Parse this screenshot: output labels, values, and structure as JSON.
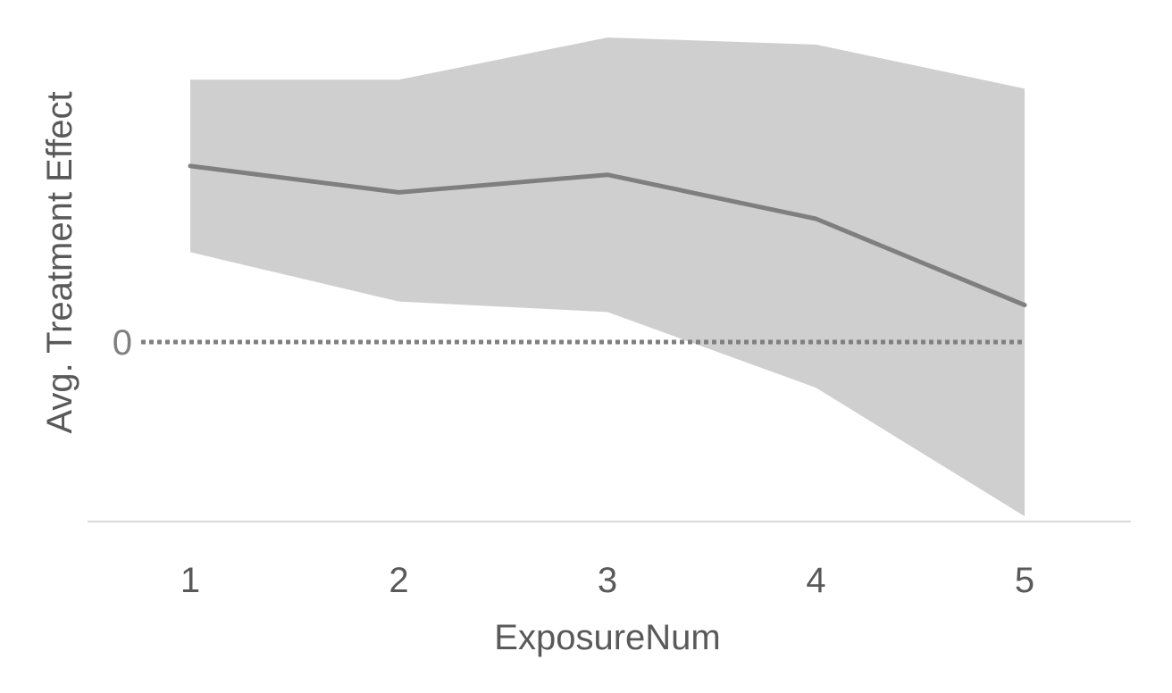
{
  "chart_data": {
    "type": "line",
    "title": "",
    "xlabel": "ExposureNum",
    "ylabel": "Avg. Treatment Effect",
    "x": [
      1,
      2,
      3,
      4,
      5
    ],
    "series": [
      {
        "values": [
          1.0,
          0.85,
          0.95,
          0.7,
          0.21
        ],
        "lower": [
          0.51,
          0.23,
          0.17,
          -0.26,
          -0.99
        ],
        "upper": [
          1.49,
          1.49,
          1.73,
          1.69,
          1.44
        ]
      }
    ],
    "ylim": [
      -1.01,
      1.73
    ],
    "yticks": [
      {
        "value": 0,
        "label": "0"
      }
    ],
    "reference_line": {
      "value": 0,
      "style": "dotted"
    },
    "grid": false,
    "legend": "none",
    "colors": {
      "line": "#7f7f7f",
      "band": "#d0cfd0",
      "axis": "#d9d9d9",
      "text": "#595959",
      "zero": "#7f7f7f"
    }
  }
}
